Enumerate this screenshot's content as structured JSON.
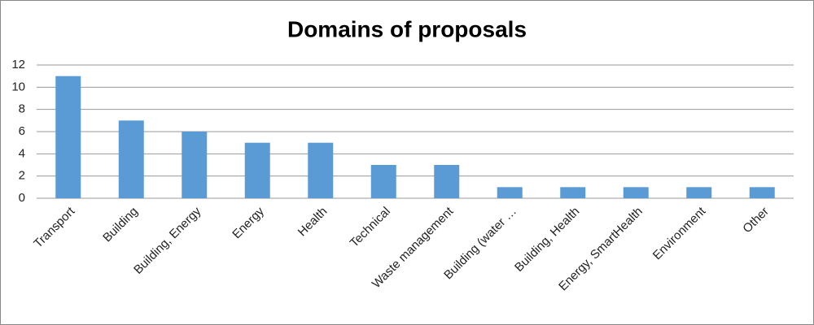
{
  "chart_data": {
    "type": "bar",
    "title": "Domains of proposals",
    "categories": [
      "Transport",
      "Building",
      "Building, Energy",
      "Energy",
      "Health",
      "Technical",
      "Waste management",
      "Building (water …",
      "Building, Health",
      "Energy, SmartHealth",
      "Environment",
      "Other"
    ],
    "values": [
      11,
      7,
      6,
      5,
      5,
      3,
      3,
      1,
      1,
      1,
      1,
      1
    ],
    "color": "#5b9bd5",
    "ylim": [
      0,
      12
    ],
    "yticks": [
      0,
      2,
      4,
      6,
      8,
      10,
      12
    ],
    "grid": true
  }
}
